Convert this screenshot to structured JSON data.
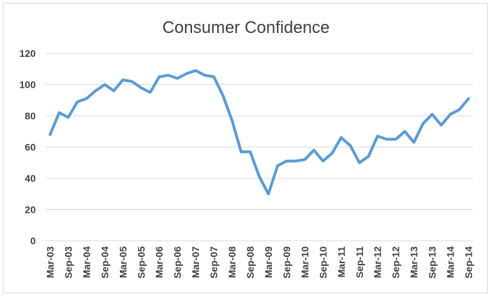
{
  "chart_data": {
    "type": "line",
    "title": "Consumer Confidence",
    "xlabel": "",
    "ylabel": "",
    "ylim": [
      0,
      120
    ],
    "yticks": [
      0,
      20,
      40,
      60,
      80,
      100,
      120
    ],
    "grid": true,
    "legend": "none",
    "line_color": "#5b9bd5",
    "x": [
      "Mar-03",
      "Jun-03",
      "Sep-03",
      "Dec-03",
      "Mar-04",
      "Jun-04",
      "Sep-04",
      "Dec-04",
      "Mar-05",
      "Jun-05",
      "Sep-05",
      "Dec-05",
      "Mar-06",
      "Jun-06",
      "Sep-06",
      "Dec-06",
      "Mar-07",
      "Jun-07",
      "Sep-07",
      "Dec-07",
      "Mar-08",
      "Jun-08",
      "Sep-08",
      "Dec-08",
      "Mar-09",
      "Jun-09",
      "Sep-09",
      "Dec-09",
      "Mar-10",
      "Jun-10",
      "Sep-10",
      "Dec-10",
      "Mar-11",
      "Jun-11",
      "Sep-11",
      "Dec-11",
      "Mar-12",
      "Jun-12",
      "Sep-12",
      "Dec-12",
      "Mar-13",
      "Jun-13",
      "Sep-13",
      "Dec-13",
      "Mar-14",
      "Jun-14",
      "Sep-14"
    ],
    "xtick_labels": [
      "Mar-03",
      "Sep-03",
      "Mar-04",
      "Sep-04",
      "Mar-05",
      "Sep-05",
      "Mar-06",
      "Sep-06",
      "Mar-07",
      "Sep-07",
      "Mar-08",
      "Sep-08",
      "Mar-09",
      "Sep-09",
      "Mar-10",
      "Sep-10",
      "Mar-11",
      "Sep-11",
      "Mar-12",
      "Sep-12",
      "Mar-13",
      "Sep-13",
      "Mar-14",
      "Sep-14"
    ],
    "values": [
      68,
      82,
      79,
      89,
      91,
      96,
      100,
      96,
      103,
      102,
      98,
      95,
      105,
      106,
      104,
      107,
      109,
      106,
      105,
      93,
      77,
      57,
      57,
      41,
      30,
      48,
      51,
      51,
      52,
      58,
      51,
      56,
      66,
      61,
      50,
      54,
      67,
      65,
      65,
      70,
      63,
      75,
      81,
      74,
      81,
      84,
      91
    ]
  }
}
